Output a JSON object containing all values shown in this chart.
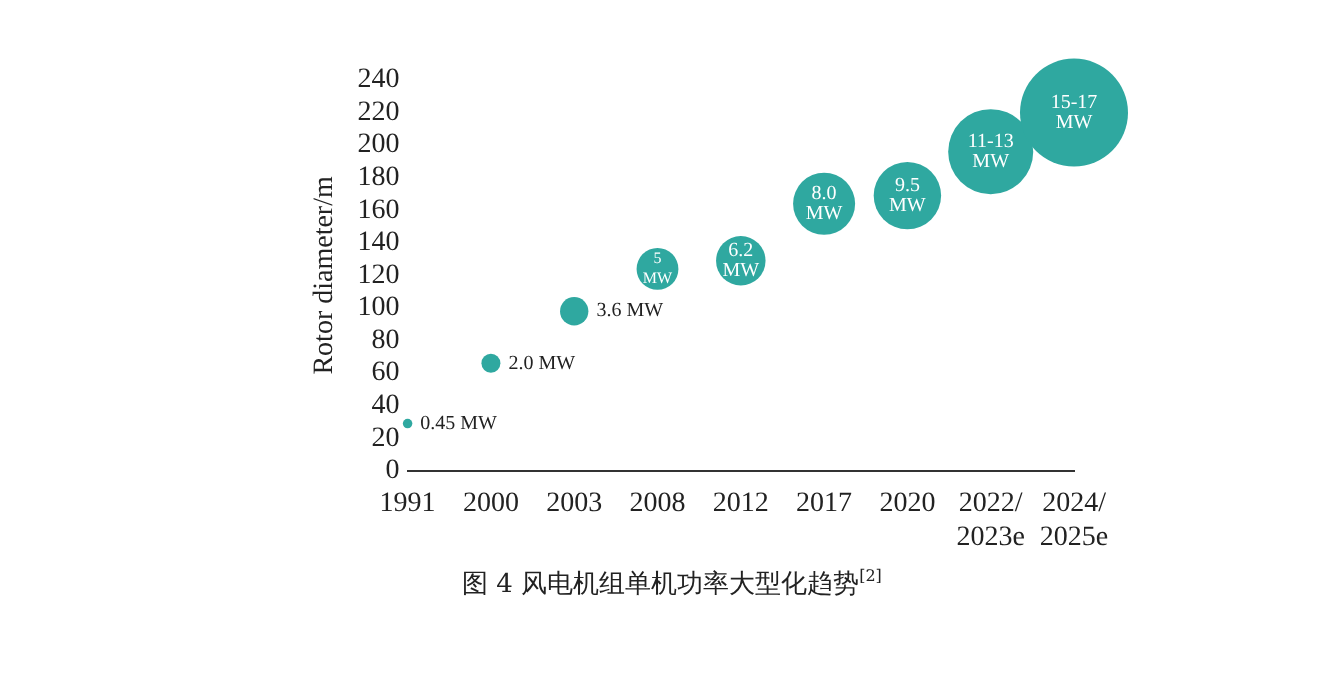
{
  "chart_data": {
    "type": "bubble",
    "title": "图 4  风电机组单机功率大型化趋势$^{[2]}$",
    "ylabel": "Rotor diameter/m",
    "categories": [
      "1991",
      "2000",
      "2003",
      "2008",
      "2012",
      "2017",
      "2020",
      "2022/2023e",
      "2024/2025e"
    ],
    "values": [
      29,
      66,
      98,
      124,
      129,
      164,
      169,
      196,
      220
    ],
    "sizes": [
      0.0077,
      0.031,
      0.069,
      0.15,
      0.21,
      0.33,
      0.39,
      0.62,
      1
    ],
    "color": "#2fa8a0",
    "ylim": [
      0,
      240
    ],
    "yticks": [
      0,
      20,
      40,
      60,
      80,
      100,
      120,
      140,
      160,
      180,
      200,
      220,
      240
    ],
    "grid": false,
    "legend": false,
    "annotations": [
      {
        "text": "0.45 MW",
        "x": "1991",
        "y": 29
      },
      {
        "text": "2.0 MW",
        "x": "2000",
        "y": 66
      },
      {
        "text": "3.6 MW",
        "x": "2003",
        "y": 98
      },
      {
        "text": "5 MW",
        "x": "2008",
        "y": 124
      },
      {
        "text": "6.2 MW",
        "x": "2012",
        "y": 129
      },
      {
        "text": "8.0 MW",
        "x": "2017",
        "y": 164
      },
      {
        "text": "9.5 MW",
        "x": "2020",
        "y": 169
      },
      {
        "text": "11-13 MW",
        "x": "2022/2023e",
        "y": 196
      },
      {
        "text": "15-17 MW",
        "x": "2024/2025e",
        "y": 220
      }
    ]
  }
}
